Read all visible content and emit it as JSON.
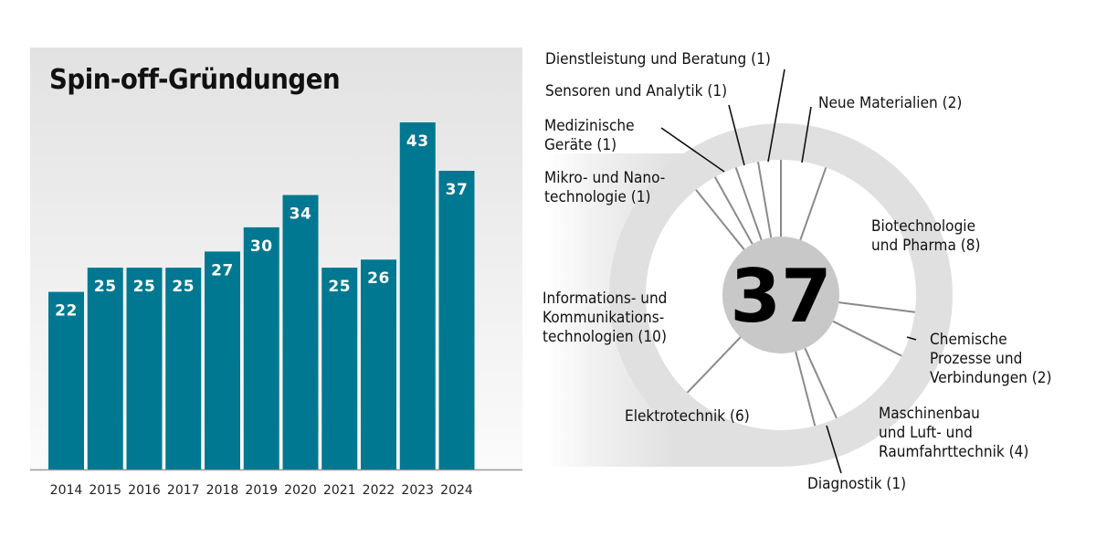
{
  "chart_data": [
    {
      "type": "bar",
      "title": "Spin-off-Gründungen",
      "xlabel": "",
      "ylabel": "",
      "categories": [
        "2014",
        "2015",
        "2016",
        "2017",
        "2018",
        "2019",
        "2020",
        "2021",
        "2022",
        "2023",
        "2024"
      ],
      "values": [
        22,
        25,
        25,
        25,
        27,
        30,
        34,
        25,
        26,
        43,
        37
      ],
      "ylim": [
        0,
        50
      ],
      "grid": false,
      "data_labels": true,
      "color": "#007891"
    },
    {
      "type": "pie",
      "variant": "spoke-ring",
      "total_label": "37",
      "total": 37,
      "order": "clockwise from top",
      "slices": [
        {
          "label": "Neue Materialien (2)",
          "name": "Neue Materialien",
          "value": 2
        },
        {
          "label": "Biotechnologie\nund Pharma (8)",
          "name": "Biotechnologie und Pharma",
          "value": 8
        },
        {
          "label": "Chemische\nProzesse und\nVerbindungen (2)",
          "name": "Chemische Prozesse und Verbindungen",
          "value": 2
        },
        {
          "label": "Maschinenbau\nund Luft- und\nRaumfahrttechnik (4)",
          "name": "Maschinenbau und Luft- und Raumfahrttechnik",
          "value": 4
        },
        {
          "label": "Diagnostik (1)",
          "name": "Diagnostik",
          "value": 1
        },
        {
          "label": "Elektrotechnik (6)",
          "name": "Elektrotechnik",
          "value": 6
        },
        {
          "label": "Informations- und\nKommunikations-\ntechnologien (10)",
          "name": "Informations- und Kommunikationstechnologien",
          "value": 10
        },
        {
          "label": "Mikro- und Nano-\ntechnologie (1)",
          "name": "Mikro- und Nanotechnologie",
          "value": 1
        },
        {
          "label": "Medizinische\nGeräte (1)",
          "name": "Medizinische Geräte",
          "value": 1
        },
        {
          "label": "Sensoren und Analytik (1)",
          "name": "Sensoren und Analytik",
          "value": 1
        },
        {
          "label": "Dienstleistung und Beratung (1)",
          "name": "Dienstleistung und Beratung",
          "value": 1
        }
      ],
      "colors": {
        "ring": "#e0e0e0",
        "center": "#c8c8c8",
        "spoke": "#8a8a8a",
        "leader": "#111111"
      }
    }
  ]
}
